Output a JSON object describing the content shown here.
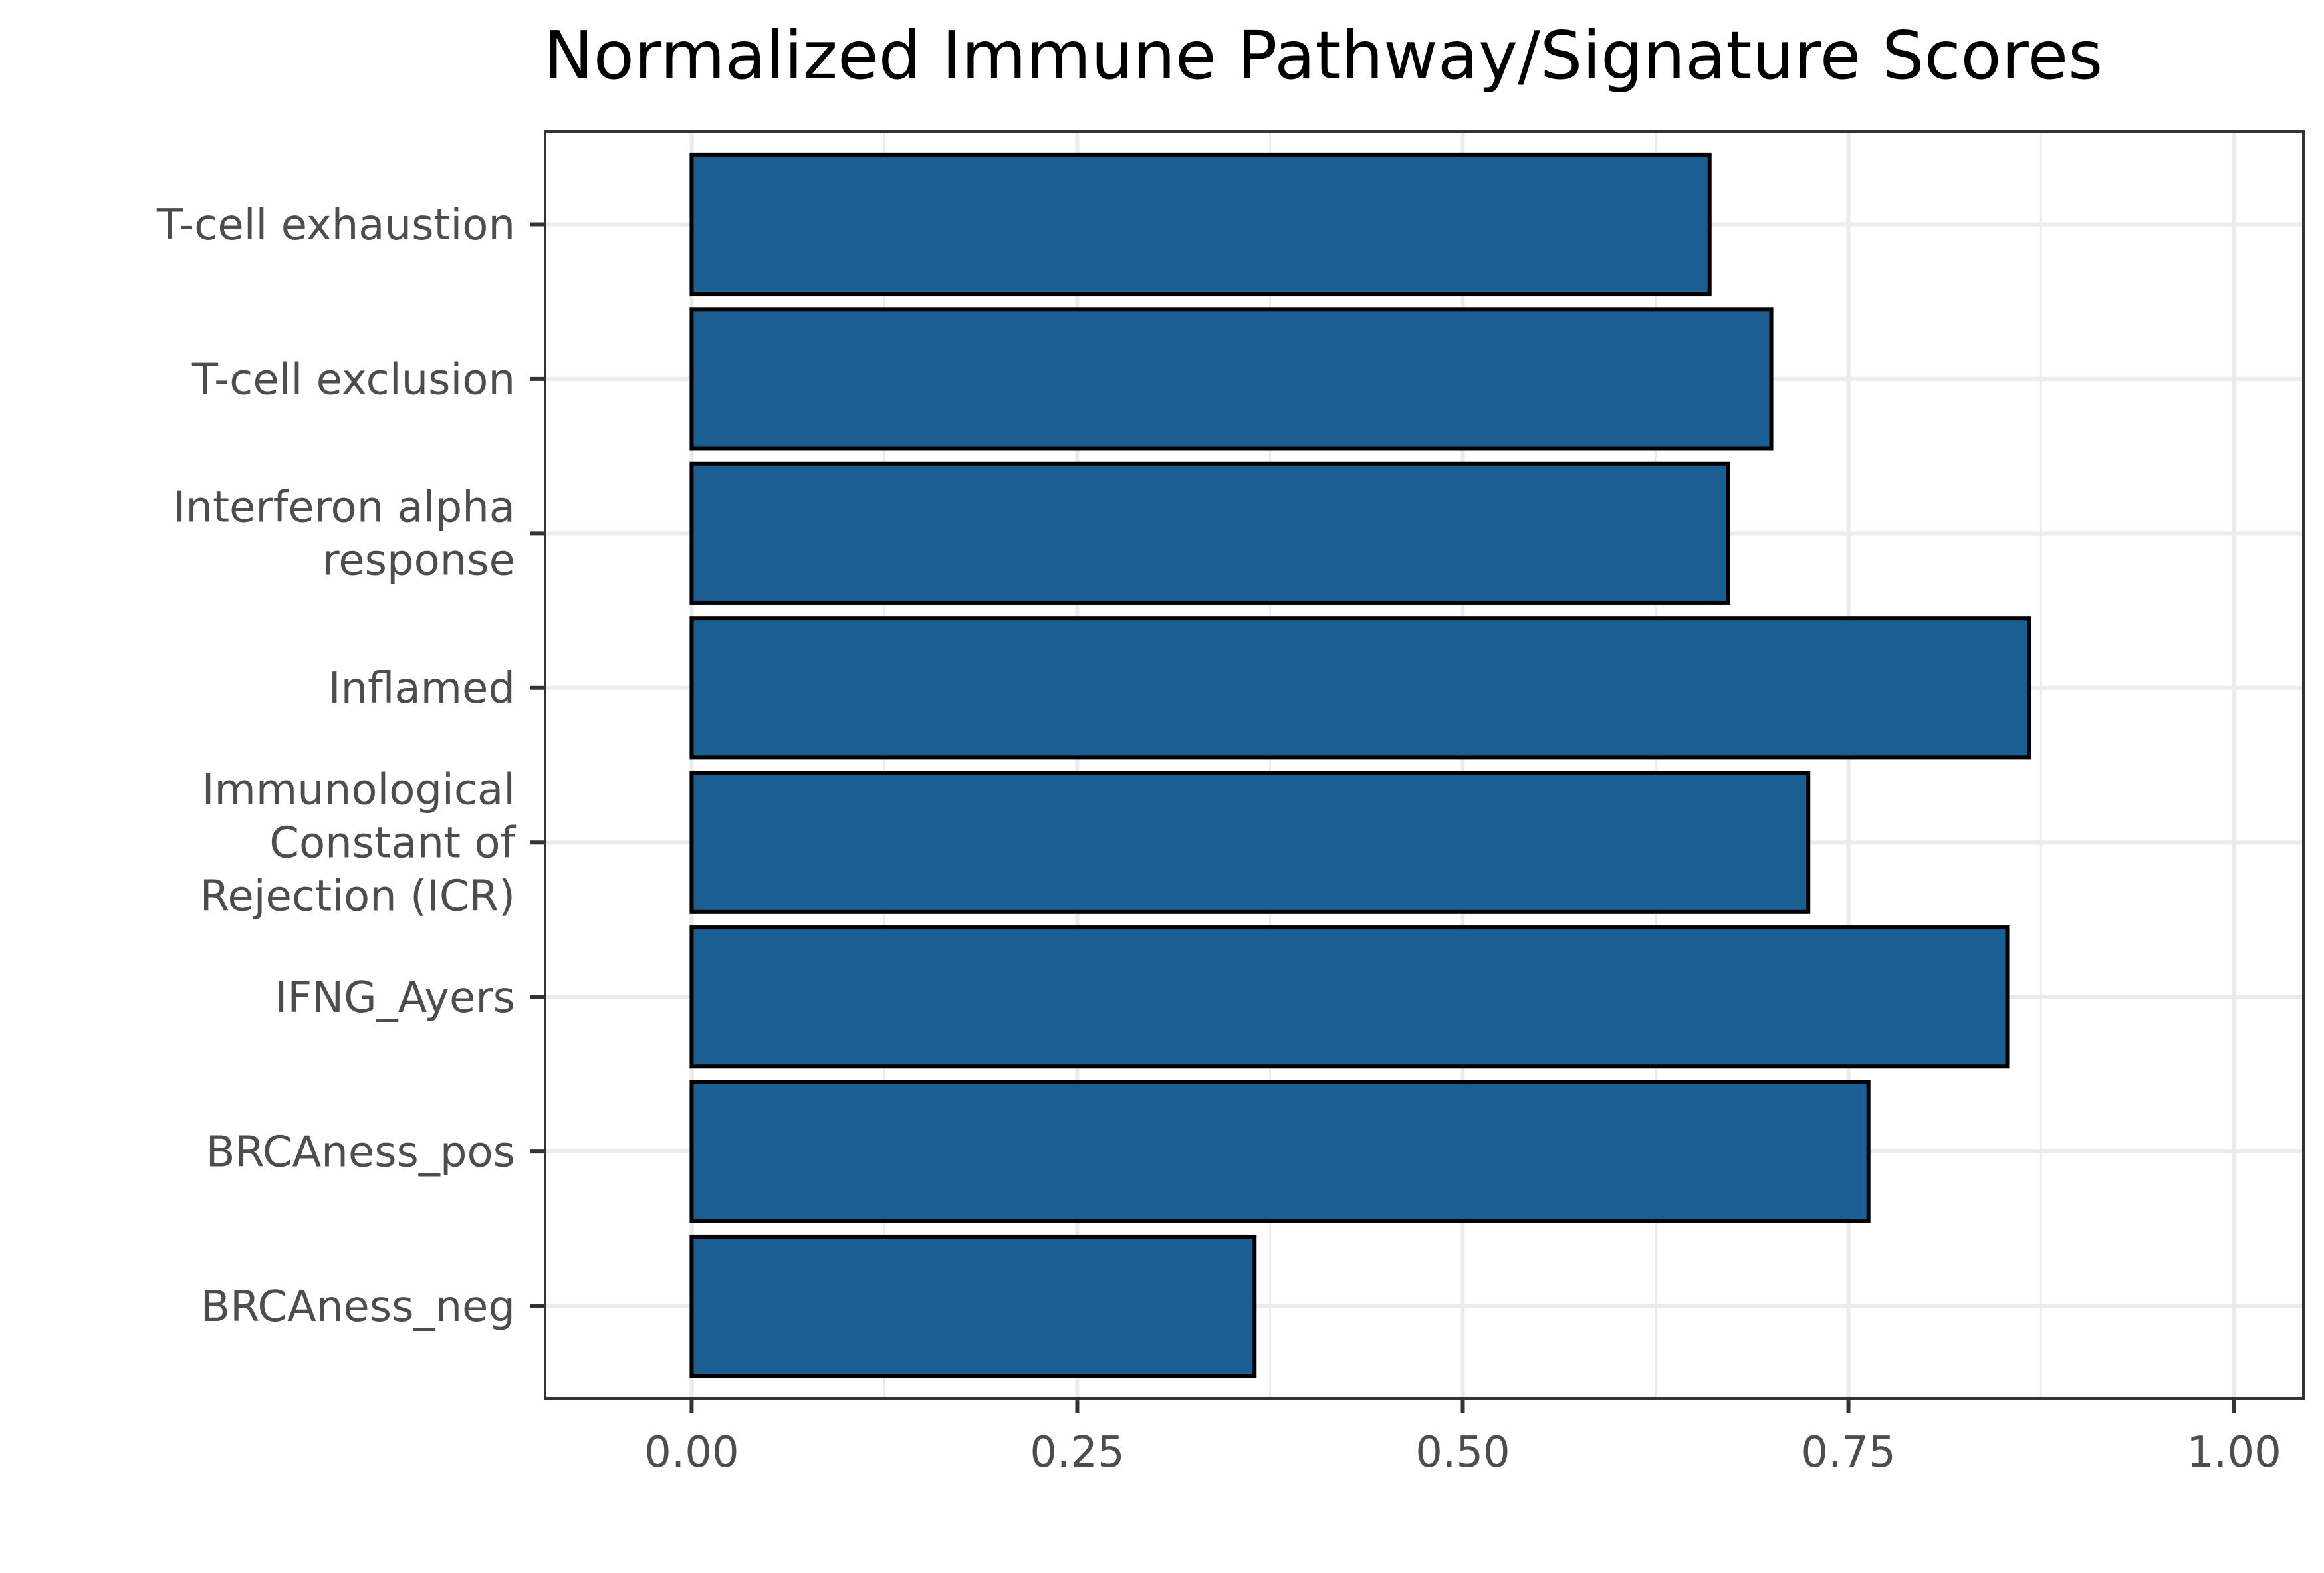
{
  "chart_data": {
    "type": "bar",
    "orientation": "horizontal",
    "title": "Normalized Immune Pathway/Signature Scores",
    "xlabel": "",
    "ylabel": "",
    "xlim": [
      -0.095,
      1.045
    ],
    "x_ticks": [
      0,
      0.25,
      0.5,
      0.75,
      1
    ],
    "x_tick_labels": [
      "0.00",
      "0.25",
      "0.50",
      "0.75",
      "1.00"
    ],
    "categories": [
      "T-cell exhaustion",
      "T-cell exclusion",
      "Interferon alpha\nresponse",
      "Inflamed",
      "Immunological\nConstant of\nRejection (ICR)",
      "IFNG_Ayers",
      "BRCAness_pos",
      "BRCAness_neg"
    ],
    "values": [
      0.66,
      0.7,
      0.672,
      0.867,
      0.724,
      0.853,
      0.763,
      0.365
    ],
    "bar_color": "#1B5E92",
    "bar_edge_color": "#000000",
    "grid": true,
    "legend": "none"
  }
}
